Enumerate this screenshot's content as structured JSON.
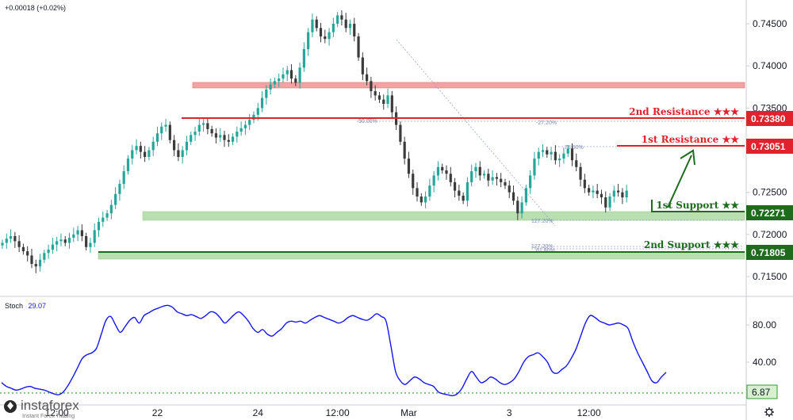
{
  "header": {
    "change_text": "+0.00018 (+0.02%)"
  },
  "colors": {
    "up": "#26a69a",
    "down": "#3b3b3b",
    "resistance": "#e0222d",
    "support": "#1e6b1e",
    "zone_res": "#f3a3a3",
    "zone_sup": "#b9deb0",
    "stoch_line": "#1414ff",
    "stoch_level": "#2e9c2e"
  },
  "watermark": {
    "name": "instaforex",
    "tagline": "Instant Forex Trading"
  },
  "settings_icon": "gear-icon",
  "chart_data": [
    {
      "type": "candlestick",
      "title": "",
      "y_axis": {
        "range": [
          0.7125,
          0.748
        ],
        "ticks": [
          "0.74500",
          "0.74000",
          "0.73500",
          "0.73000",
          "0.72500",
          "0.72000",
          "0.71500"
        ],
        "tick_values": [
          0.745,
          0.74,
          0.735,
          0.73,
          0.725,
          0.72,
          0.715
        ]
      },
      "x_axis": {
        "ticks": [
          "12:00",
          "22",
          "24",
          "12:00",
          "Mar",
          "3",
          "12:00"
        ],
        "tick_index": [
          13,
          37,
          61,
          80,
          97,
          121,
          140
        ],
        "bar_count": 160
      },
      "grid": false,
      "close_series": [
        0.719,
        0.7195,
        0.7198,
        0.7192,
        0.7185,
        0.718,
        0.7175,
        0.7165,
        0.7162,
        0.717,
        0.7178,
        0.7182,
        0.7188,
        0.7192,
        0.7194,
        0.719,
        0.7196,
        0.72,
        0.7205,
        0.7198,
        0.7185,
        0.719,
        0.7205,
        0.7215,
        0.722,
        0.7225,
        0.7235,
        0.7248,
        0.726,
        0.7275,
        0.729,
        0.73,
        0.7305,
        0.7298,
        0.7292,
        0.73,
        0.731,
        0.732,
        0.7328,
        0.733,
        0.7312,
        0.73,
        0.7292,
        0.73,
        0.731,
        0.7318,
        0.7322,
        0.733,
        0.7332,
        0.7325,
        0.732,
        0.7315,
        0.7318,
        0.7312,
        0.731,
        0.7316,
        0.7322,
        0.7326,
        0.733,
        0.7336,
        0.7342,
        0.735,
        0.7362,
        0.7372,
        0.7378,
        0.7382,
        0.7385,
        0.739,
        0.7395,
        0.7385,
        0.738,
        0.7398,
        0.742,
        0.744,
        0.7455,
        0.7445,
        0.7435,
        0.7432,
        0.744,
        0.745,
        0.746,
        0.7455,
        0.7445,
        0.745,
        0.7435,
        0.741,
        0.739,
        0.7382,
        0.737,
        0.7365,
        0.736,
        0.7355,
        0.7365,
        0.7345,
        0.733,
        0.731,
        0.729,
        0.7272,
        0.7255,
        0.7245,
        0.7238,
        0.7245,
        0.7258,
        0.727,
        0.728,
        0.7276,
        0.7272,
        0.7262,
        0.7252,
        0.7246,
        0.724,
        0.7262,
        0.7275,
        0.728,
        0.727,
        0.7272,
        0.7264,
        0.7268,
        0.7266,
        0.7262,
        0.7258,
        0.725,
        0.724,
        0.7225,
        0.7238,
        0.7255,
        0.727,
        0.729,
        0.7298,
        0.73,
        0.7295,
        0.7298,
        0.7288,
        0.729,
        0.7296,
        0.7302,
        0.7288,
        0.728,
        0.7265,
        0.7255,
        0.725,
        0.7252,
        0.7248,
        0.7244,
        0.7232,
        0.7245,
        0.7252,
        0.725,
        0.7244,
        0.7252
      ]
    },
    {
      "type": "line",
      "title": "Stoch",
      "value_label": "29.07",
      "y_axis": {
        "range": [
          0,
          108
        ],
        "ticks": [
          "80.00",
          "40.00",
          "0.00"
        ],
        "tick_values": [
          80,
          40,
          0
        ]
      },
      "series": [
        {
          "values": [
            18,
            14,
            12,
            10,
            11,
            13,
            14,
            12,
            11,
            10,
            8,
            6,
            5,
            8,
            15,
            24,
            34,
            44,
            48,
            50,
            55,
            70,
            85,
            89,
            80,
            72,
            78,
            85,
            88,
            82,
            90,
            93,
            96,
            98,
            100,
            101,
            99,
            94,
            92,
            90,
            91,
            89,
            87,
            90,
            94,
            93,
            88,
            82,
            86,
            91,
            94,
            90,
            84,
            76,
            72,
            75,
            70,
            68,
            72,
            76,
            82,
            84,
            83,
            84,
            82,
            85,
            88,
            90,
            88,
            86,
            84,
            82,
            84,
            88,
            90,
            88,
            86,
            85,
            88,
            92,
            89,
            84,
            58,
            30,
            20,
            16,
            20,
            24,
            22,
            18,
            16,
            14,
            8,
            6,
            5,
            4,
            6,
            12,
            22,
            30,
            24,
            18,
            20,
            24,
            22,
            18,
            16,
            18,
            22,
            30,
            40,
            46,
            48,
            50,
            46,
            40,
            30,
            28,
            32,
            36,
            44,
            54,
            68,
            82,
            90,
            88,
            84,
            82,
            80,
            81,
            82,
            80,
            76,
            62,
            50,
            40,
            30,
            20,
            18,
            24,
            29.07
          ]
        }
      ],
      "levels": [
        {
          "value": 6.87,
          "label": "6.87"
        }
      ]
    }
  ],
  "levels": {
    "resistance_2": {
      "label": "2nd Resistance",
      "stars": "★★★",
      "price": 0.7338,
      "tag": "0.73380"
    },
    "resistance_1": {
      "label": "1st Resistance",
      "stars": "★★",
      "price": 0.73051,
      "tag": "0.73051"
    },
    "support_1": {
      "label": "1st Support",
      "stars": "★★",
      "price": 0.72271,
      "tag": "0.72271"
    },
    "support_2": {
      "label": "2nd Support",
      "stars": "★★★",
      "price": 0.71805,
      "tag": "0.71805"
    }
  },
  "fib_labels": {
    "f1": "50.00%",
    "f2": "-27.20%",
    "f3": "78.60%",
    "f4": "127.20%",
    "f5": "127.20%",
    "f6": "61.80%"
  }
}
